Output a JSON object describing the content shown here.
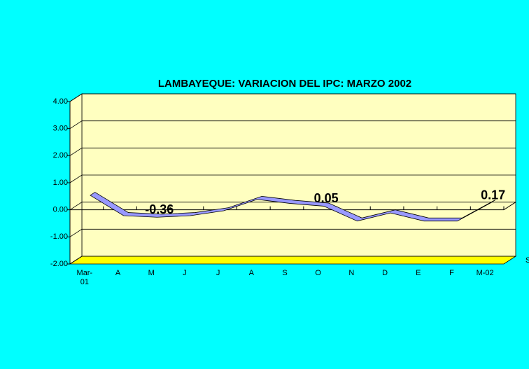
{
  "chart_data": {
    "type": "line",
    "title": "LAMBAYEQUE: VARIACION DEL IPC: MARZO 2002",
    "categories": [
      "Mar-01",
      "A",
      "M",
      "J",
      "J",
      "A",
      "S",
      "O",
      "N",
      "D",
      "E",
      "F",
      "M-02"
    ],
    "series": [
      {
        "name": "S",
        "color": "#9999ff",
        "values": [
          0.45,
          -0.3,
          -0.36,
          -0.3,
          -0.12,
          0.3,
          0.15,
          0.05,
          -0.5,
          -0.2,
          -0.5,
          -0.5,
          0.17
        ],
        "value_labels": [
          null,
          null,
          "-0.36",
          null,
          null,
          null,
          null,
          "0.05",
          null,
          null,
          null,
          null,
          "0.17"
        ]
      }
    ],
    "ylim": [
      -2,
      4
    ],
    "yticks": [
      {
        "value": -2,
        "label": "-2.00"
      },
      {
        "value": -1,
        "label": "-1.00"
      },
      {
        "value": 0,
        "label": "0.00"
      },
      {
        "value": 1,
        "label": "1.00"
      },
      {
        "value": 2,
        "label": "2.00"
      },
      {
        "value": 3,
        "label": "3.00"
      },
      {
        "value": 4,
        "label": "4.00"
      }
    ],
    "grid": true,
    "wall_color": "#ffffc0",
    "floor_color": "#ffff00"
  }
}
